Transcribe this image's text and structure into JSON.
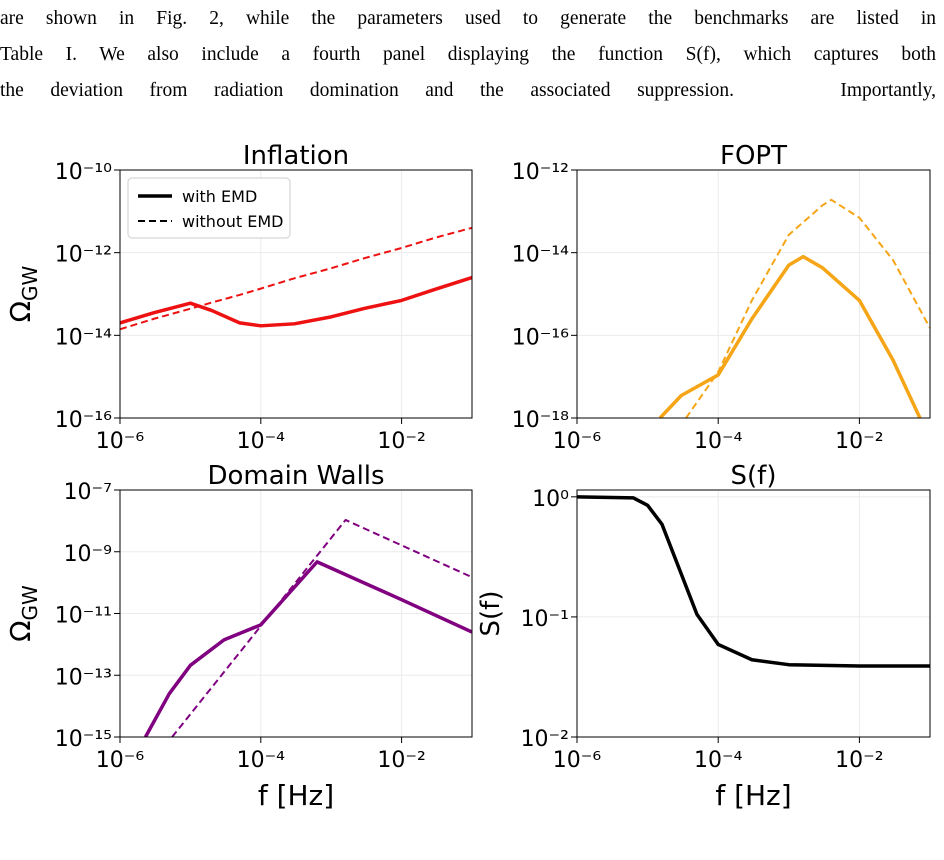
{
  "text": {
    "lines": [
      "are shown in Fig. 2, while the parameters used to generate the benchmarks are listed in",
      "Table I. We also include a fourth panel displaying the function S(f), which captures both",
      "the deviation from radiation domination and the associated suppression.    Importantly,"
    ]
  },
  "chart_data": [
    {
      "type": "line",
      "title": "Inflation",
      "ylabel": {
        "text": "Ω",
        "sub": "GW"
      },
      "xscale": "log",
      "yscale": "log",
      "grid": true,
      "xlim": [
        1e-06,
        0.1
      ],
      "xticks": [
        {
          "value": 1e-06,
          "label": "10⁻⁶"
        },
        {
          "value": 0.0001,
          "label": "10⁻⁴"
        },
        {
          "value": 0.01,
          "label": "10⁻²"
        }
      ],
      "ylim": [
        1e-16,
        1e-10
      ],
      "yticks": [
        {
          "value": 1e-16,
          "label": "10⁻¹⁶"
        },
        {
          "value": 1e-14,
          "label": "10⁻¹⁴"
        },
        {
          "value": 1e-12,
          "label": "10⁻¹²"
        },
        {
          "value": 1e-10,
          "label": "10⁻¹⁰"
        }
      ],
      "legend": {
        "loc": "upper left",
        "entries": [
          {
            "name": "with EMD",
            "style": "solid"
          },
          {
            "name": "without EMD",
            "style": "dashed"
          }
        ]
      },
      "series": [
        {
          "style": "solid",
          "color": "#ee1111",
          "x": [
            1e-06,
            3e-06,
            1e-05,
            2e-05,
            5e-05,
            0.0001,
            0.0003,
            0.001,
            0.003,
            0.01,
            0.03,
            0.1
          ],
          "values": [
            2e-14,
            3.5e-14,
            6e-14,
            4e-14,
            2e-14,
            1.7e-14,
            1.9e-14,
            2.8e-14,
            4.5e-14,
            7e-14,
            1.3e-13,
            2.5e-13
          ]
        },
        {
          "style": "dashed",
          "color": "#ee1111",
          "x": [
            1e-06,
            3e-06,
            1e-05,
            2e-05,
            5e-05,
            0.0001,
            0.0003,
            0.001,
            0.003,
            0.01,
            0.03,
            0.1
          ],
          "values": [
            1.4e-14,
            2.5e-14,
            4.4e-14,
            6.2e-14,
            9.5e-14,
            1.35e-13,
            2.4e-13,
            4.2e-13,
            7.4e-13,
            1.3e-12,
            2.3e-12,
            4e-12
          ]
        }
      ]
    },
    {
      "type": "line",
      "title": "FOPT",
      "xscale": "log",
      "yscale": "log",
      "grid": true,
      "xlim": [
        1e-06,
        0.1
      ],
      "xticks": [
        {
          "value": 1e-06,
          "label": "10⁻⁶"
        },
        {
          "value": 0.0001,
          "label": "10⁻⁴"
        },
        {
          "value": 0.01,
          "label": "10⁻²"
        }
      ],
      "ylim": [
        1e-18,
        1e-12
      ],
      "yticks": [
        {
          "value": 1e-18,
          "label": "10⁻¹⁸"
        },
        {
          "value": 1e-16,
          "label": "10⁻¹⁶"
        },
        {
          "value": 1e-14,
          "label": "10⁻¹⁴"
        },
        {
          "value": 1e-12,
          "label": "10⁻¹²"
        }
      ],
      "series": [
        {
          "style": "solid",
          "color": "#f5a515",
          "x": [
            1.5e-05,
            3e-05,
            0.0001,
            0.0003,
            0.001,
            0.0016,
            0.003,
            0.01,
            0.03,
            0.072
          ],
          "values": [
            1e-18,
            3.5e-18,
            1.1e-17,
            2.5e-16,
            5e-15,
            8e-15,
            4.3e-15,
            7e-16,
            2.5e-17,
            1e-18
          ]
        },
        {
          "style": "dashed",
          "color": "#f5a515",
          "x": [
            3.5e-05,
            0.0001,
            0.0003,
            0.001,
            0.003,
            0.004,
            0.01,
            0.03,
            0.1
          ],
          "values": [
            1e-18,
            1.3e-17,
            7e-16,
            2.7e-14,
            1.4e-13,
            1.9e-13,
            7e-14,
            6.6e-15,
            1.5e-16
          ]
        }
      ]
    },
    {
      "type": "line",
      "title": "Domain Walls",
      "ylabel": {
        "text": "Ω",
        "sub": "GW"
      },
      "xlabel": "f [Hz]",
      "xscale": "log",
      "yscale": "log",
      "grid": true,
      "xlim": [
        1e-06,
        0.1
      ],
      "xticks": [
        {
          "value": 1e-06,
          "label": "10⁻⁶"
        },
        {
          "value": 0.0001,
          "label": "10⁻⁴"
        },
        {
          "value": 0.01,
          "label": "10⁻²"
        }
      ],
      "ylim": [
        1e-15,
        1e-07
      ],
      "yticks": [
        {
          "value": 1e-15,
          "label": "10⁻¹⁵"
        },
        {
          "value": 1e-13,
          "label": "10⁻¹³"
        },
        {
          "value": 1e-11,
          "label": "10⁻¹¹"
        },
        {
          "value": 1e-09,
          "label": "10⁻⁹"
        },
        {
          "value": 1e-07,
          "label": "10⁻⁷"
        }
      ],
      "series": [
        {
          "style": "solid",
          "color": "#800080",
          "x": [
            2.3e-06,
            5e-06,
            1e-05,
            3e-05,
            0.0001,
            0.00063,
            0.01,
            0.1
          ],
          "values": [
            1e-15,
            2.5e-14,
            2.1e-13,
            1.4e-12,
            4.3e-12,
            4.7e-10,
            2.8e-11,
            2.5e-12
          ]
        },
        {
          "style": "dashed",
          "color": "#800080",
          "x": [
            5.5e-06,
            0.0016,
            0.1
          ],
          "values": [
            1e-15,
            1.07e-08,
            1.5e-10
          ]
        }
      ]
    },
    {
      "type": "line",
      "title": "S(f)",
      "ylabel": "S(f)",
      "xlabel": "f [Hz]",
      "xscale": "log",
      "yscale": "log",
      "grid": true,
      "xlim": [
        1e-06,
        0.1
      ],
      "xticks": [
        {
          "value": 1e-06,
          "label": "10⁻⁶"
        },
        {
          "value": 0.0001,
          "label": "10⁻⁴"
        },
        {
          "value": 0.01,
          "label": "10⁻²"
        }
      ],
      "ylim": [
        0.01,
        1.14
      ],
      "yticks": [
        {
          "value": 0.01,
          "label": "10⁻²"
        },
        {
          "value": 0.1,
          "label": "10⁻¹"
        },
        {
          "value": 1,
          "label": "10⁰"
        }
      ],
      "series": [
        {
          "style": "solid",
          "color": "#000000",
          "x": [
            1e-06,
            6.3e-06,
            1e-05,
            1.6e-05,
            2.5e-05,
            5e-05,
            0.0001,
            0.0003,
            0.001,
            0.01,
            0.1
          ],
          "values": [
            1.0,
            0.98,
            0.85,
            0.59,
            0.3,
            0.105,
            0.059,
            0.044,
            0.04,
            0.039,
            0.039
          ]
        }
      ]
    }
  ]
}
